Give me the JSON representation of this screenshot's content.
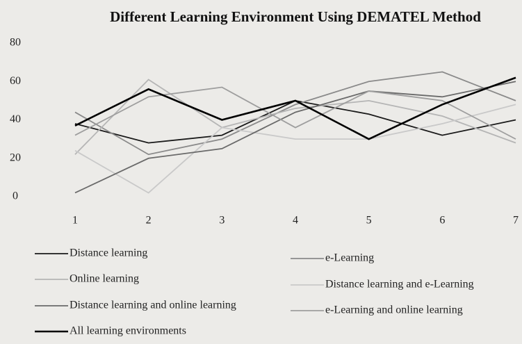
{
  "chart_data": {
    "type": "line",
    "title": "Different Learning Environment Using DEMATEL Method",
    "categories": [
      "1",
      "2",
      "3",
      "4",
      "5",
      "6",
      "7"
    ],
    "ylim": [
      0,
      80
    ],
    "yticks": [
      0,
      20,
      40,
      60,
      80
    ],
    "series": [
      {
        "name": "Distance learning",
        "color": "#1a1a1a",
        "values": [
          38,
          28,
          32,
          50,
          43,
          32,
          40
        ]
      },
      {
        "name": "e-Learning",
        "color": "#8a8a8a",
        "values": [
          44,
          22,
          30,
          48,
          60,
          65,
          50
        ]
      },
      {
        "name": "Online learning",
        "color": "#b5b5b5",
        "values": [
          22,
          61,
          36,
          46,
          50,
          42,
          28
        ]
      },
      {
        "name": "Distance learning and e-Learning",
        "color": "#c9c9c9",
        "values": [
          24,
          2,
          36,
          30,
          30,
          38,
          48
        ]
      },
      {
        "name": "Distance learning and online learning",
        "color": "#6a6a6a",
        "values": [
          2,
          20,
          25,
          44,
          55,
          52,
          60
        ]
      },
      {
        "name": "e-Learning and online learning",
        "color": "#9e9e9e",
        "values": [
          32,
          52,
          57,
          36,
          55,
          50,
          30
        ]
      },
      {
        "name": "All learning environments",
        "color": "#000000",
        "values": [
          37,
          56,
          40,
          50,
          30,
          48,
          62
        ]
      }
    ]
  }
}
